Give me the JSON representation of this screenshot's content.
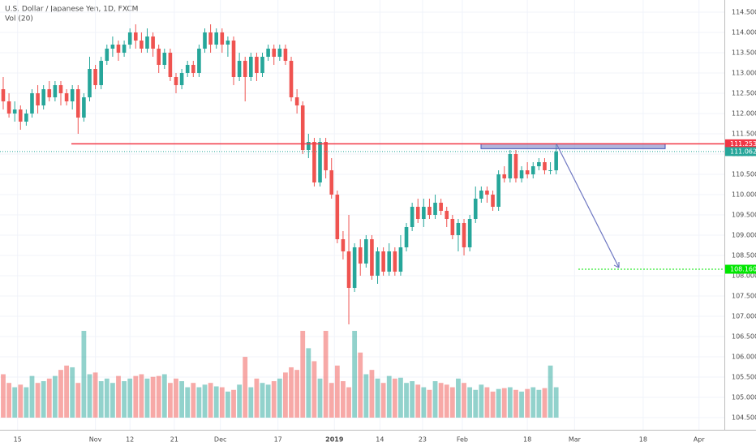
{
  "chart_data": {
    "type": "candlestick",
    "title": "U.S. Dollar / Japanese Yen, 1D, FXCM",
    "subtitle": "Vol (20)",
    "up_color": "#26a69a",
    "down_color": "#ef5350",
    "grid": true,
    "ylim": [
      104.5,
      114.5
    ],
    "yticks": [
      {
        "value": 104.5,
        "label": "104.500"
      },
      {
        "value": 105,
        "label": "105.000"
      },
      {
        "value": 105.5,
        "label": "105.500"
      },
      {
        "value": 106,
        "label": "106.000"
      },
      {
        "value": 106.5,
        "label": "106.500"
      },
      {
        "value": 107,
        "label": "107.000"
      },
      {
        "value": 107.5,
        "label": "107.500"
      },
      {
        "value": 108,
        "label": "108.000"
      },
      {
        "value": 108.5,
        "label": "108.500"
      },
      {
        "value": 109,
        "label": "109.000"
      },
      {
        "value": 109.5,
        "label": "109.500"
      },
      {
        "value": 110,
        "label": "110.000"
      },
      {
        "value": 110.5,
        "label": "110.500"
      },
      {
        "value": 111,
        "label": "111.000"
      },
      {
        "value": 111.5,
        "label": "111.500"
      },
      {
        "value": 112,
        "label": "112.000"
      },
      {
        "value": 112.5,
        "label": "112.500"
      },
      {
        "value": 113,
        "label": "113.000"
      },
      {
        "value": 113.5,
        "label": "113.500"
      },
      {
        "value": 114,
        "label": "114.000"
      },
      {
        "value": 114.5,
        "label": "114.500"
      }
    ],
    "xlim": [
      -0.56,
      125.2
    ],
    "xticks": [
      {
        "value": 2.5,
        "label": "15"
      },
      {
        "value": 16,
        "label": "Nov"
      },
      {
        "value": 22,
        "label": "12"
      },
      {
        "value": 29.7,
        "label": "21"
      },
      {
        "value": 37.7,
        "label": "Dec"
      },
      {
        "value": 47.7,
        "label": "17"
      },
      {
        "value": 57.5,
        "label": "2019"
      },
      {
        "value": 65.4,
        "label": "14"
      },
      {
        "value": 72.8,
        "label": "23"
      },
      {
        "value": 79.7,
        "label": "Feb"
      },
      {
        "value": 91,
        "label": "18"
      },
      {
        "value": 99.2,
        "label": "Mar"
      },
      {
        "value": 111.1,
        "label": "18"
      },
      {
        "value": 120.8,
        "label": "Apr"
      }
    ],
    "open": [
      112.6,
      112.3,
      112.0,
      112.1,
      111.8,
      112.0,
      112.5,
      112.2,
      112.6,
      112.4,
      112.7,
      112.5,
      112.3,
      112.6,
      111.9,
      112.4,
      113.1,
      112.7,
      113.3,
      113.6,
      113.7,
      113.5,
      113.7,
      114.0,
      113.8,
      113.6,
      113.9,
      113.6,
      113.2,
      113.5,
      112.9,
      112.7,
      113.0,
      113.2,
      113.0,
      113.6,
      114.0,
      113.7,
      114.0,
      113.7,
      113.8,
      112.9,
      113.3,
      112.9,
      113.4,
      113.0,
      113.4,
      113.6,
      113.4,
      113.6,
      113.3,
      112.4,
      112.2,
      111.1,
      111.3,
      110.3,
      111.3,
      110.6,
      110.0,
      108.9,
      108.6,
      107.7,
      108.7,
      108.3,
      108.9,
      108.0,
      108.6,
      108.1,
      108.6,
      108.1,
      108.7,
      109.2,
      109.7,
      109.4,
      109.7,
      109.5,
      109.8,
      109.6,
      109.4,
      109.0,
      109.3,
      108.7,
      109.4,
      109.9,
      110.1,
      110.0,
      109.7,
      110.5,
      110.4,
      111.0,
      110.4,
      110.6,
      110.5,
      110.7,
      110.8,
      110.6,
      110.6
    ],
    "high": [
      112.9,
      112.5,
      112.3,
      112.2,
      112.1,
      112.6,
      112.7,
      112.7,
      112.8,
      112.8,
      112.8,
      112.6,
      112.7,
      112.7,
      112.5,
      113.4,
      113.2,
      113.4,
      113.7,
      113.9,
      113.8,
      113.8,
      114.1,
      114.2,
      114.0,
      114.1,
      114.0,
      113.7,
      113.6,
      113.6,
      113.0,
      113.1,
      113.3,
      113.3,
      113.7,
      114.1,
      114.2,
      114.1,
      114.1,
      113.9,
      113.9,
      113.5,
      113.4,
      113.5,
      113.5,
      113.5,
      113.7,
      113.7,
      113.7,
      113.7,
      113.4,
      112.6,
      112.3,
      111.5,
      111.4,
      111.4,
      111.4,
      110.9,
      110.1,
      109.1,
      109.5,
      108.8,
      108.9,
      109.0,
      109.0,
      108.7,
      108.7,
      108.8,
      108.7,
      109.0,
      109.3,
      109.8,
      109.9,
      109.9,
      109.9,
      110.0,
      109.9,
      109.7,
      109.5,
      109.4,
      109.4,
      109.5,
      110.2,
      110.2,
      110.2,
      110.1,
      110.6,
      110.7,
      111.1,
      111.1,
      110.7,
      110.8,
      110.8,
      110.9,
      110.9,
      110.8,
      111.25
    ],
    "low": [
      112.1,
      111.9,
      111.8,
      111.6,
      111.7,
      111.9,
      112.0,
      112.1,
      112.3,
      112.3,
      112.2,
      112.2,
      112.1,
      111.5,
      111.8,
      112.3,
      112.6,
      112.6,
      113.2,
      113.4,
      113.3,
      113.4,
      113.6,
      113.6,
      113.5,
      113.5,
      113.4,
      113.0,
      113.1,
      112.8,
      112.5,
      112.6,
      112.9,
      112.9,
      112.9,
      113.5,
      113.5,
      113.6,
      113.5,
      113.4,
      112.7,
      112.8,
      112.3,
      112.8,
      112.8,
      112.9,
      113.3,
      113.2,
      113.3,
      113.2,
      112.3,
      112.0,
      111.0,
      110.9,
      110.2,
      110.2,
      110.4,
      109.9,
      108.8,
      108.4,
      106.8,
      107.6,
      108.0,
      108.2,
      107.9,
      107.8,
      108.0,
      108.0,
      108.0,
      108.0,
      108.6,
      109.1,
      109.3,
      109.2,
      109.4,
      109.4,
      109.5,
      109.2,
      108.9,
      108.6,
      108.5,
      108.6,
      109.3,
      109.8,
      109.8,
      109.6,
      109.6,
      110.3,
      110.3,
      110.3,
      110.3,
      110.4,
      110.4,
      110.6,
      110.5,
      110.5,
      110.5
    ],
    "close": [
      112.3,
      112.0,
      112.1,
      111.8,
      112.0,
      112.5,
      112.2,
      112.6,
      112.4,
      112.7,
      112.5,
      112.3,
      112.6,
      111.9,
      112.4,
      113.1,
      112.7,
      113.3,
      113.6,
      113.7,
      113.5,
      113.7,
      114.0,
      113.8,
      113.6,
      113.9,
      113.6,
      113.2,
      113.5,
      112.9,
      112.7,
      113.0,
      113.2,
      113.0,
      113.6,
      114.0,
      113.7,
      114.0,
      113.7,
      113.8,
      112.9,
      113.3,
      112.9,
      113.4,
      113.0,
      113.4,
      113.6,
      113.4,
      113.6,
      113.3,
      112.4,
      112.2,
      111.1,
      111.3,
      110.3,
      111.3,
      110.6,
      110.0,
      108.9,
      108.6,
      107.7,
      108.7,
      108.3,
      108.9,
      108.0,
      108.6,
      108.1,
      108.6,
      108.1,
      108.7,
      109.2,
      109.7,
      109.4,
      109.7,
      109.5,
      109.8,
      109.6,
      109.4,
      109.0,
      109.3,
      108.7,
      109.4,
      109.9,
      110.1,
      110.0,
      109.7,
      110.5,
      110.4,
      111.0,
      110.4,
      110.6,
      110.5,
      110.7,
      110.8,
      110.6,
      110.6,
      111.062
    ],
    "volume": [
      50,
      40,
      35,
      38,
      35,
      48,
      40,
      42,
      45,
      48,
      55,
      60,
      58,
      40,
      100,
      50,
      52,
      42,
      45,
      40,
      48,
      42,
      45,
      48,
      50,
      45,
      47,
      48,
      50,
      40,
      45,
      42,
      35,
      40,
      35,
      38,
      40,
      36,
      35,
      30,
      32,
      38,
      70,
      35,
      45,
      40,
      38,
      42,
      45,
      52,
      58,
      55,
      100,
      80,
      65,
      45,
      100,
      40,
      60,
      42,
      35,
      100,
      75,
      50,
      55,
      45,
      40,
      48,
      45,
      46,
      40,
      42,
      38,
      35,
      32,
      42,
      40,
      38,
      35,
      45,
      40,
      35,
      32,
      38,
      35,
      30,
      33,
      34,
      35,
      32,
      30,
      33,
      35,
      32,
      34,
      60,
      35
    ],
    "levels": [
      {
        "value": 111.253,
        "color": "#f23645"
      },
      {
        "value": 111.062,
        "color": "#26a69a"
      },
      {
        "value": 108.16,
        "label": "108.160",
        "color": "#00e600"
      }
    ]
  }
}
